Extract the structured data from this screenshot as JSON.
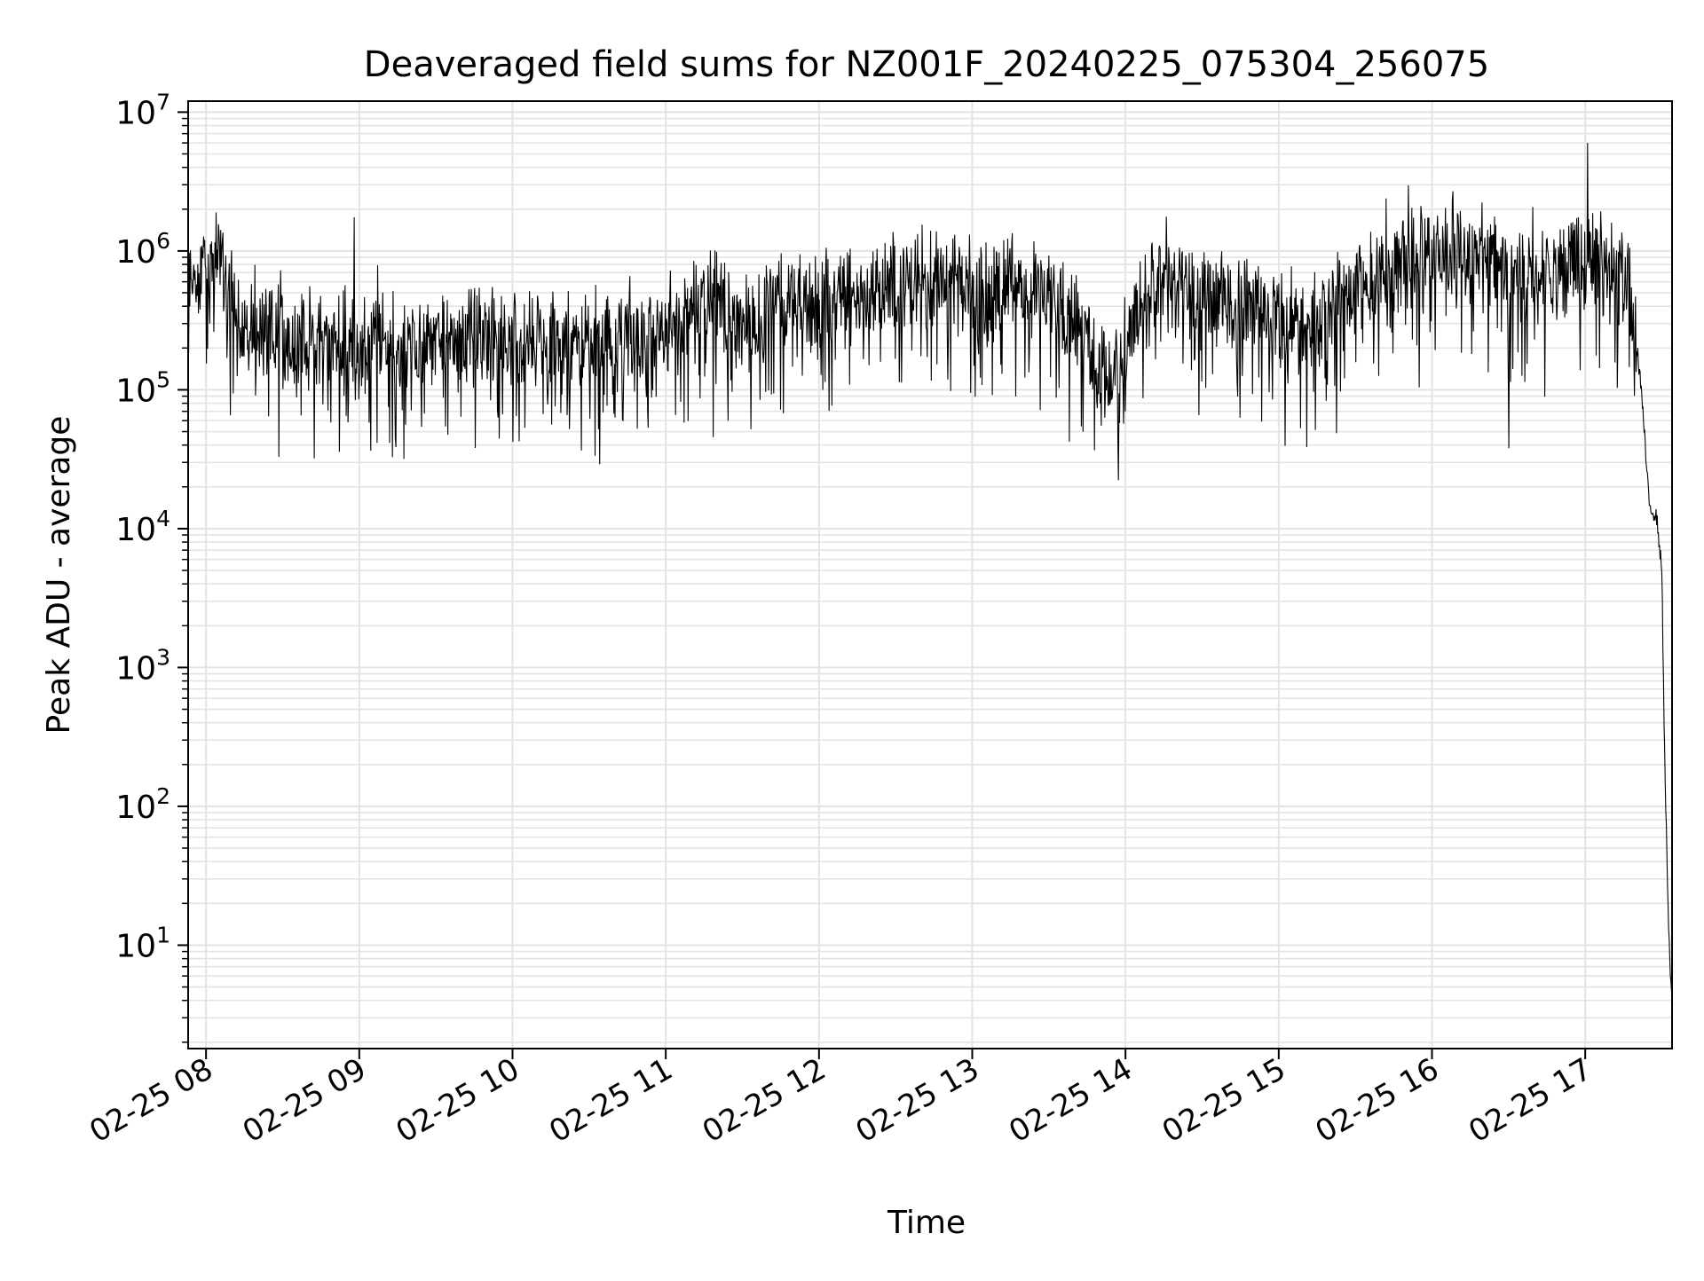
{
  "chart_data": {
    "type": "line",
    "title": "Deaveraged field sums for NZ001F_20240225_075304_256075",
    "xlabel": "Time",
    "ylabel": "Peak ADU - average",
    "y_scale": "log",
    "ylim": [
      1.8,
      12000000
    ],
    "xlim": [
      "2024-02-25 07:53",
      "2024-02-25 17:34"
    ],
    "x_ticks": [
      {
        "value": "2024-02-25 08:00",
        "label": "02-25 08"
      },
      {
        "value": "2024-02-25 09:00",
        "label": "02-25 09"
      },
      {
        "value": "2024-02-25 10:00",
        "label": "02-25 10"
      },
      {
        "value": "2024-02-25 11:00",
        "label": "02-25 11"
      },
      {
        "value": "2024-02-25 12:00",
        "label": "02-25 12"
      },
      {
        "value": "2024-02-25 13:00",
        "label": "02-25 13"
      },
      {
        "value": "2024-02-25 14:00",
        "label": "02-25 14"
      },
      {
        "value": "2024-02-25 15:00",
        "label": "02-25 15"
      },
      {
        "value": "2024-02-25 16:00",
        "label": "02-25 16"
      },
      {
        "value": "2024-02-25 17:00",
        "label": "02-25 17"
      }
    ],
    "y_ticks": [
      {
        "value": 10,
        "base": "10",
        "exp": "1"
      },
      {
        "value": 100,
        "base": "10",
        "exp": "2"
      },
      {
        "value": 1000,
        "base": "10",
        "exp": "3"
      },
      {
        "value": 10000,
        "base": "10",
        "exp": "4"
      },
      {
        "value": 100000,
        "base": "10",
        "exp": "5"
      },
      {
        "value": 1000000,
        "base": "10",
        "exp": "6"
      },
      {
        "value": 10000000,
        "base": "10",
        "exp": "7"
      }
    ],
    "grid": true,
    "line_color": "#000000",
    "grid_color": "#e3e3e3",
    "series": [
      {
        "x": [
          "2024-02-25 07:53",
          "2024-02-25 08:00",
          "2024-02-25 08:05",
          "2024-02-25 08:10",
          "2024-02-25 08:15",
          "2024-02-25 08:20",
          "2024-02-25 08:30",
          "2024-02-25 08:45",
          "2024-02-25 09:00",
          "2024-02-25 09:20",
          "2024-02-25 09:40",
          "2024-02-25 10:00",
          "2024-02-25 10:20",
          "2024-02-25 10:40",
          "2024-02-25 11:00",
          "2024-02-25 11:15",
          "2024-02-25 11:30",
          "2024-02-25 11:45",
          "2024-02-25 12:00",
          "2024-02-25 12:20",
          "2024-02-25 12:40",
          "2024-02-25 13:00",
          "2024-02-25 13:20",
          "2024-02-25 13:40",
          "2024-02-25 13:55",
          "2024-02-25 14:10",
          "2024-02-25 14:30",
          "2024-02-25 14:50",
          "2024-02-25 15:10",
          "2024-02-25 15:30",
          "2024-02-25 15:50",
          "2024-02-25 16:10",
          "2024-02-25 16:30",
          "2024-02-25 16:50",
          "2024-02-25 17:00",
          "2024-02-25 17:10",
          "2024-02-25 17:18",
          "2024-02-25 17:22",
          "2024-02-25 17:25",
          "2024-02-25 17:28",
          "2024-02-25 17:30",
          "2024-02-25 17:31",
          "2024-02-25 17:32",
          "2024-02-25 17:33",
          "2024-02-25 17:34"
        ],
        "values": [
          550000,
          700000,
          900000,
          500000,
          300000,
          280000,
          250000,
          230000,
          220000,
          230000,
          250000,
          230000,
          220000,
          230000,
          250000,
          600000,
          300000,
          450000,
          450000,
          500000,
          700000,
          550000,
          600000,
          350000,
          120000,
          700000,
          500000,
          400000,
          300000,
          550000,
          900000,
          1000000,
          700000,
          800000,
          900000,
          900000,
          500000,
          100000,
          15000,
          12000,
          5000,
          300,
          40,
          8,
          4
        ]
      }
    ]
  }
}
